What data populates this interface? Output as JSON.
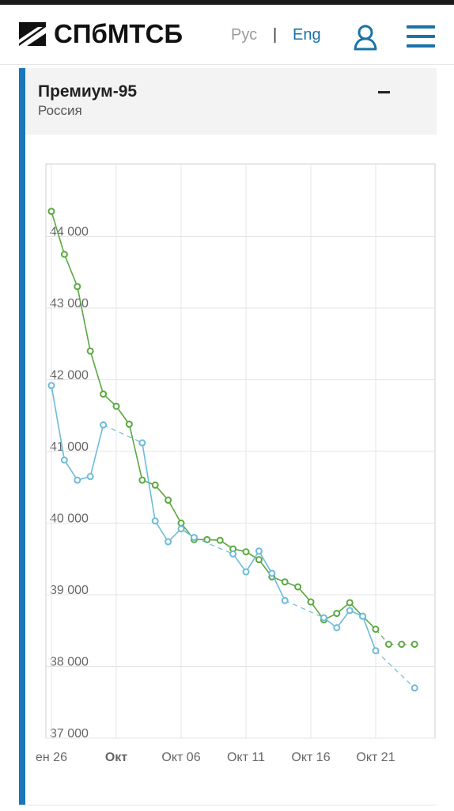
{
  "header": {
    "logo_text": "СПбМТСБ",
    "lang_ru": "Рус",
    "lang_sep": "|",
    "lang_en": "Eng"
  },
  "card": {
    "title": "Премиум-95",
    "subtitle": "Россия"
  },
  "colors": {
    "green": "#5aa840",
    "blue": "#6dbbd8",
    "accent": "#1a73a8",
    "card_border": "#1976bc"
  },
  "chart_data": {
    "type": "line",
    "y_ticks": [
      "37 000",
      "38 000",
      "39 000",
      "40 000",
      "41 000",
      "42 000",
      "43 000",
      "44 000"
    ],
    "x_ticks": [
      {
        "label": "ен 26",
        "day": 0,
        "bold": false
      },
      {
        "label": "Окт",
        "day": 5,
        "bold": true
      },
      {
        "label": "Окт 06",
        "day": 10,
        "bold": false
      },
      {
        "label": "Окт 11",
        "day": 15,
        "bold": false
      },
      {
        "label": "Окт 16",
        "day": 20,
        "bold": false
      },
      {
        "label": "Окт 21",
        "day": 25,
        "bold": false
      }
    ],
    "ylim": [
      37000,
      44000
    ],
    "series": [
      {
        "color": "#5aa840",
        "points": [
          [
            0,
            44350
          ],
          [
            1,
            43750
          ],
          [
            2,
            43300
          ],
          [
            3,
            42400
          ],
          [
            4,
            41800
          ],
          [
            5,
            41630
          ],
          [
            6,
            41380
          ],
          [
            7,
            40600
          ],
          [
            8,
            40530
          ],
          [
            9,
            40320
          ],
          [
            10,
            40000
          ],
          [
            11,
            39770
          ],
          [
            12,
            39770
          ],
          [
            13,
            39760
          ],
          [
            14,
            39640
          ],
          [
            15,
            39600
          ],
          [
            16,
            39490
          ],
          [
            17,
            39250
          ],
          [
            18,
            39180
          ],
          [
            19,
            39110
          ],
          [
            20,
            38900
          ],
          [
            21,
            38650
          ],
          [
            22,
            38740
          ],
          [
            23,
            38890
          ],
          [
            24,
            38700
          ],
          [
            25,
            38520
          ],
          [
            26,
            38310
          ],
          [
            27,
            38310
          ],
          [
            28,
            38310
          ]
        ],
        "dashed_after": 25
      },
      {
        "color": "#6dbbd8",
        "points": [
          [
            0,
            41920
          ],
          [
            1,
            40880
          ],
          [
            2,
            40600
          ],
          [
            3,
            40650
          ],
          [
            4,
            41370
          ],
          [
            7,
            41120
          ],
          [
            8,
            40030
          ],
          [
            9,
            39740
          ],
          [
            10,
            39920
          ],
          [
            11,
            39800
          ],
          [
            14,
            39570
          ],
          [
            15,
            39320
          ],
          [
            16,
            39610
          ],
          [
            17,
            39300
          ],
          [
            18,
            38920
          ],
          [
            21,
            38680
          ],
          [
            22,
            38540
          ],
          [
            23,
            38780
          ],
          [
            24,
            38700
          ],
          [
            25,
            38220
          ],
          [
            28,
            37700
          ]
        ],
        "gaps": [
          [
            4,
            7
          ],
          [
            11,
            14
          ],
          [
            18,
            21
          ],
          [
            25,
            28
          ]
        ]
      }
    ]
  }
}
